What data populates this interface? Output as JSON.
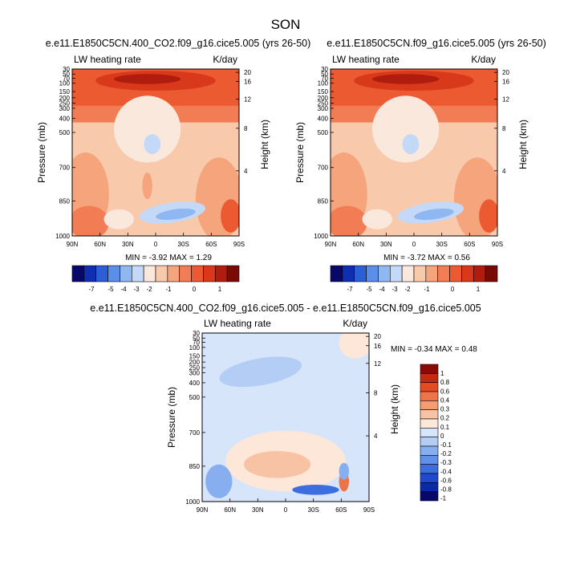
{
  "page_title": "SON",
  "colors": {
    "left_scale": [
      "#08086b",
      "#0f2fb0",
      "#2b5fd6",
      "#5b8ee8",
      "#8fb7f2",
      "#c4d9f8",
      "#fbe8dc",
      "#f8c9ab",
      "#f5a47c",
      "#f27d55",
      "#ec5a32",
      "#d8391b",
      "#b01d0f",
      "#7a0a06"
    ],
    "diff_scale": [
      "#08086b",
      "#0b2aa8",
      "#1f49cf",
      "#3d6ee0",
      "#5f90ea",
      "#87afef",
      "#b3cdf5",
      "#d6e5fa",
      "#fde7d9",
      "#f8c3a4",
      "#f39d73",
      "#ee7448",
      "#e64a22",
      "#c42a12",
      "#8c0a05"
    ]
  },
  "chart_data": [
    {
      "type": "heatmap",
      "title": "e.e11.E1850C5CN.400_CO2.f09_g16.cice5.005 (yrs 26-50)",
      "left_label": "LW heating rate",
      "right_label": "K/day",
      "ylabel": "Pressure (mb)",
      "ylabel_right": "Height (km)",
      "xticks": [
        "90N",
        "60N",
        "30N",
        "0",
        "30S",
        "60S",
        "90S"
      ],
      "yticks": [
        "30",
        "50",
        "70",
        "100",
        "150",
        "200",
        "250",
        "300",
        "400",
        "500",
        "700",
        "850",
        "1000"
      ],
      "yticks_right": [
        "20",
        "16",
        "12",
        "8",
        "4"
      ],
      "minmax": "MIN = -3.92  MAX =  1.29",
      "colorbar_ticks": [
        "-7",
        "-5",
        "-4",
        "-3",
        "-2",
        "-1",
        "0",
        "1"
      ]
    },
    {
      "type": "heatmap",
      "title": "e.e11.E1850C5CN.f09_g16.cice5.005 (yrs 26-50)",
      "left_label": "LW heating rate",
      "right_label": "K/day",
      "ylabel": "Pressure (mb)",
      "ylabel_right": "Height (km)",
      "xticks": [
        "90N",
        "60N",
        "30N",
        "0",
        "30S",
        "60S",
        "90S"
      ],
      "yticks": [
        "30",
        "50",
        "70",
        "100",
        "150",
        "200",
        "250",
        "300",
        "400",
        "500",
        "700",
        "850",
        "1000"
      ],
      "yticks_right": [
        "20",
        "16",
        "12",
        "8",
        "4"
      ],
      "minmax": "MIN = -3.72  MAX =  0.56",
      "colorbar_ticks": [
        "-7",
        "-5",
        "-4",
        "-3",
        "-2",
        "-1",
        "0",
        "1"
      ]
    },
    {
      "type": "heatmap",
      "title": "e.e11.E1850C5CN.400_CO2.f09_g16.cice5.005 - e.e11.E1850C5CN.f09_g16.cice5.005",
      "left_label": "LW heating rate",
      "right_label": "K/day",
      "ylabel": "Pressure (mb)",
      "ylabel_right": "Height (km)",
      "xticks": [
        "90N",
        "60N",
        "30N",
        "0",
        "30S",
        "60S",
        "90S"
      ],
      "yticks": [
        "30",
        "50",
        "70",
        "100",
        "150",
        "200",
        "250",
        "300",
        "400",
        "500",
        "700",
        "850",
        "1000"
      ],
      "yticks_right": [
        "20",
        "16",
        "12",
        "8",
        "4"
      ],
      "minmax": "MIN = -0.34  MAX =  0.48",
      "colorbar_ticks": [
        "1",
        "0.8",
        "0.6",
        "0.4",
        "0.3",
        "0.2",
        "0.1",
        "0",
        "-0.1",
        "-0.2",
        "-0.3",
        "-0.4",
        "-0.6",
        "-0.8",
        "-1"
      ]
    }
  ]
}
